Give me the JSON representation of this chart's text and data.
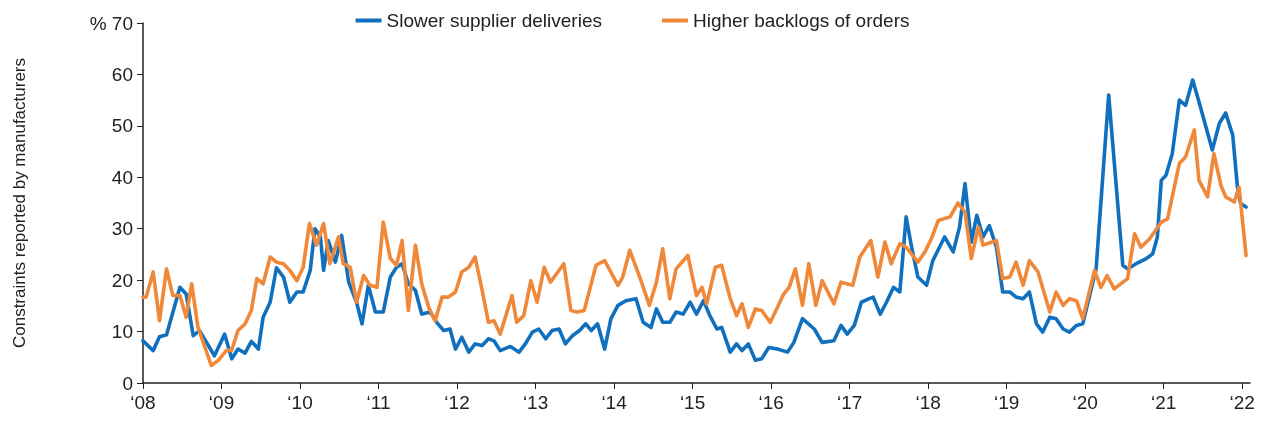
{
  "chart_data": {
    "type": "line",
    "ylabel": "Constraints reported by manufacturers",
    "xlim": [
      8,
      22.1
    ],
    "xticks": [
      {
        "value": 8,
        "label": "‘08"
      },
      {
        "value": 9,
        "label": "‘09"
      },
      {
        "value": 10,
        "label": "‘10"
      },
      {
        "value": 11,
        "label": "‘11"
      },
      {
        "value": 12,
        "label": "‘12"
      },
      {
        "value": 13,
        "label": "‘13"
      },
      {
        "value": 14,
        "label": "‘14"
      },
      {
        "value": 15,
        "label": "‘15"
      },
      {
        "value": 16,
        "label": "‘16"
      },
      {
        "value": 17,
        "label": "‘17"
      },
      {
        "value": 18,
        "label": "‘18"
      },
      {
        "value": 19,
        "label": "‘19"
      },
      {
        "value": 20,
        "label": "‘20"
      },
      {
        "value": 21,
        "label": "‘21"
      },
      {
        "value": 22,
        "label": "‘22"
      }
    ],
    "ylim": [
      0,
      70
    ],
    "yticks": [
      0,
      10,
      20,
      30,
      40,
      50,
      60,
      {
        "value": 70,
        "label": "% 70"
      }
    ],
    "grid": false,
    "legend": "top",
    "marker": "none",
    "line_style": "solid",
    "series": [
      {
        "name": "Slower supplier deliveries",
        "color": "#1170bd",
        "x": [
          8.0,
          8.13,
          8.21,
          8.3,
          8.47,
          8.55,
          8.64,
          8.72,
          8.91,
          9.04,
          9.13,
          9.21,
          9.3,
          9.38,
          9.47,
          9.53,
          9.62,
          9.7,
          9.79,
          9.87,
          9.96,
          10.04,
          10.13,
          10.19,
          10.26,
          10.3,
          10.36,
          10.45,
          10.53,
          10.62,
          10.72,
          10.79,
          10.87,
          10.96,
          11.06,
          11.15,
          11.23,
          11.3,
          11.38,
          11.47,
          11.55,
          11.66,
          11.74,
          11.83,
          11.91,
          11.98,
          12.06,
          12.15,
          12.23,
          12.32,
          12.4,
          12.47,
          12.55,
          12.68,
          12.79,
          12.87,
          12.96,
          13.04,
          13.13,
          13.21,
          13.3,
          13.38,
          13.47,
          13.56,
          13.64,
          13.71,
          13.79,
          13.88,
          13.96,
          14.05,
          14.15,
          14.28,
          14.37,
          14.47,
          14.54,
          14.62,
          14.71,
          14.79,
          14.88,
          14.97,
          15.05,
          15.14,
          15.22,
          15.31,
          15.37,
          15.48,
          15.56,
          15.63,
          15.71,
          15.8,
          15.88,
          15.97,
          16.08,
          16.21,
          16.29,
          16.4,
          16.55,
          16.65,
          16.8,
          16.89,
          16.97,
          17.06,
          17.15,
          17.25,
          17.3,
          17.39,
          17.47,
          17.56,
          17.64,
          17.72,
          17.79,
          17.87,
          17.98,
          18.06,
          18.21,
          18.32,
          18.4,
          18.47,
          18.55,
          18.62,
          18.7,
          18.78,
          18.87,
          18.95,
          19.04,
          19.12,
          19.21,
          19.29,
          19.38,
          19.46,
          19.55,
          19.63,
          19.72,
          19.8,
          19.89,
          19.97,
          20.14,
          20.3,
          20.48,
          20.54,
          20.65,
          20.78,
          20.86,
          20.92,
          20.97,
          21.03,
          21.11,
          21.2,
          21.28,
          21.37,
          21.45,
          21.62,
          21.71,
          21.79,
          21.88,
          21.94,
          21.98,
          22.05
        ],
        "values": [
          8.2,
          6.3,
          9,
          9.4,
          18.6,
          17.3,
          9.2,
          10.2,
          5.3,
          9.5,
          4.7,
          6.6,
          5.8,
          8.1,
          6.6,
          12.8,
          15.7,
          22.4,
          20.6,
          15.7,
          17.7,
          17.7,
          21.9,
          30,
          28.4,
          21.9,
          27.7,
          23.5,
          28.7,
          19.6,
          15.7,
          11.5,
          19,
          13.8,
          13.8,
          20.6,
          22.5,
          23.2,
          19.3,
          18,
          13.4,
          13.8,
          11.8,
          10.2,
          10.5,
          6.6,
          8.9,
          6,
          7.6,
          7.3,
          8.6,
          8.2,
          6.3,
          7.1,
          6,
          7.6,
          9.9,
          10.5,
          8.6,
          10.2,
          10.5,
          7.6,
          9.2,
          10.2,
          11.5,
          10.2,
          11.5,
          6.6,
          12.5,
          15.1,
          16,
          16.4,
          11.8,
          10.8,
          14.4,
          11.8,
          11.8,
          13.8,
          13.4,
          15.7,
          13.4,
          16,
          13.1,
          10.5,
          10.8,
          6,
          7.6,
          6.3,
          7.6,
          4.4,
          4.7,
          6.9,
          6.6,
          6,
          7.9,
          12.5,
          10.5,
          7.9,
          8.2,
          11.2,
          9.5,
          11.2,
          15.7,
          16.4,
          16.7,
          13.4,
          15.7,
          18.6,
          17.7,
          32.3,
          26.4,
          20.6,
          19,
          23.8,
          28.4,
          25.5,
          30.3,
          38.8,
          27.4,
          32.6,
          28.4,
          30.6,
          26.4,
          17.7,
          17.7,
          16.7,
          16.4,
          17.7,
          11.5,
          9.9,
          12.8,
          12.5,
          10.5,
          9.9,
          11.2,
          11.5,
          22.2,
          56,
          22.9,
          22.2,
          23.2,
          24.2,
          25.1,
          28.4,
          39.4,
          40.4,
          44.6,
          55,
          54,
          58.9,
          54.7,
          45.3,
          50.5,
          52.5,
          48.2,
          38.1,
          34.9,
          34.2
        ]
      },
      {
        "name": "Higher backlogs of orders",
        "color": "#f0883a",
        "x": [
          8.0,
          8.04,
          8.13,
          8.21,
          8.3,
          8.38,
          8.47,
          8.55,
          8.62,
          8.7,
          8.79,
          8.87,
          8.96,
          9.06,
          9.13,
          9.21,
          9.3,
          9.38,
          9.45,
          9.53,
          9.62,
          9.7,
          9.79,
          9.87,
          9.96,
          10.04,
          10.12,
          10.21,
          10.3,
          10.38,
          10.49,
          10.55,
          10.64,
          10.72,
          10.81,
          10.89,
          10.98,
          11.06,
          11.15,
          11.23,
          11.3,
          11.38,
          11.47,
          11.55,
          11.64,
          11.72,
          11.81,
          11.89,
          11.98,
          12.06,
          12.15,
          12.23,
          12.32,
          12.4,
          12.47,
          12.55,
          12.7,
          12.76,
          12.85,
          12.94,
          13.02,
          13.11,
          13.19,
          13.36,
          13.45,
          13.53,
          13.62,
          13.77,
          13.88,
          14.05,
          14.11,
          14.2,
          14.32,
          14.45,
          14.54,
          14.62,
          14.71,
          14.79,
          14.94,
          15.05,
          15.12,
          15.18,
          15.29,
          15.37,
          15.48,
          15.56,
          15.63,
          15.71,
          15.8,
          15.88,
          15.99,
          16.08,
          16.16,
          16.23,
          16.31,
          16.4,
          16.48,
          16.57,
          16.65,
          16.8,
          16.89,
          17.04,
          17.13,
          17.27,
          17.36,
          17.45,
          17.53,
          17.64,
          17.72,
          17.87,
          17.96,
          18.04,
          18.13,
          18.28,
          18.38,
          18.47,
          18.55,
          18.64,
          18.7,
          18.87,
          18.95,
          19.04,
          19.12,
          19.21,
          19.29,
          19.4,
          19.55,
          19.63,
          19.72,
          19.8,
          19.89,
          19.97,
          20.12,
          20.2,
          20.28,
          20.37,
          20.54,
          20.63,
          20.71,
          20.82,
          20.97,
          21.05,
          21.2,
          21.28,
          21.39,
          21.45,
          21.56,
          21.64,
          21.73,
          21.79,
          21.9,
          21.96,
          22.05
        ],
        "values": [
          16.7,
          16.7,
          21.6,
          12.1,
          22.2,
          17,
          17,
          12.8,
          19.3,
          10.8,
          6.9,
          3.4,
          4.4,
          6.3,
          6.4,
          10.2,
          11.5,
          14.1,
          20.3,
          19.3,
          24.5,
          23.5,
          23.2,
          21.9,
          19.9,
          22.5,
          31,
          26.8,
          31,
          23.2,
          28.4,
          23.2,
          22.5,
          15.7,
          20.9,
          19,
          18.6,
          31.3,
          24.2,
          22.9,
          27.7,
          14.1,
          26.8,
          19.3,
          14.7,
          12.1,
          16.7,
          16.7,
          17.7,
          21.6,
          22.5,
          24.5,
          18,
          11.8,
          12.1,
          9.5,
          17,
          11.8,
          13.1,
          19.9,
          15.7,
          22.5,
          19.6,
          23.2,
          14.1,
          13.8,
          14.1,
          22.9,
          23.8,
          19,
          20.6,
          25.8,
          20.9,
          15.1,
          19.6,
          26.1,
          16.4,
          22.2,
          24.8,
          17,
          18.6,
          15.4,
          22.5,
          22.9,
          16.4,
          13.1,
          15.4,
          10.8,
          14.4,
          14.1,
          11.8,
          14.7,
          17.3,
          18.6,
          22.2,
          15.1,
          23.2,
          15.1,
          19.9,
          15.4,
          19.6,
          19,
          24.5,
          27.7,
          20.6,
          27.4,
          23.2,
          27.1,
          26.4,
          23.5,
          25.5,
          28,
          31.6,
          32.3,
          35,
          33.2,
          24.2,
          30.3,
          26.8,
          27.7,
          20.3,
          20.6,
          23.5,
          19,
          23.8,
          21.6,
          13.8,
          17.7,
          15.1,
          16.4,
          16,
          12.5,
          21.9,
          18.6,
          20.9,
          18.3,
          20.3,
          29,
          26.4,
          28,
          31.3,
          31.9,
          42.7,
          44,
          49.2,
          39.4,
          36.2,
          44.6,
          38.4,
          36.2,
          35.2,
          38.1,
          24.8
        ]
      }
    ]
  }
}
